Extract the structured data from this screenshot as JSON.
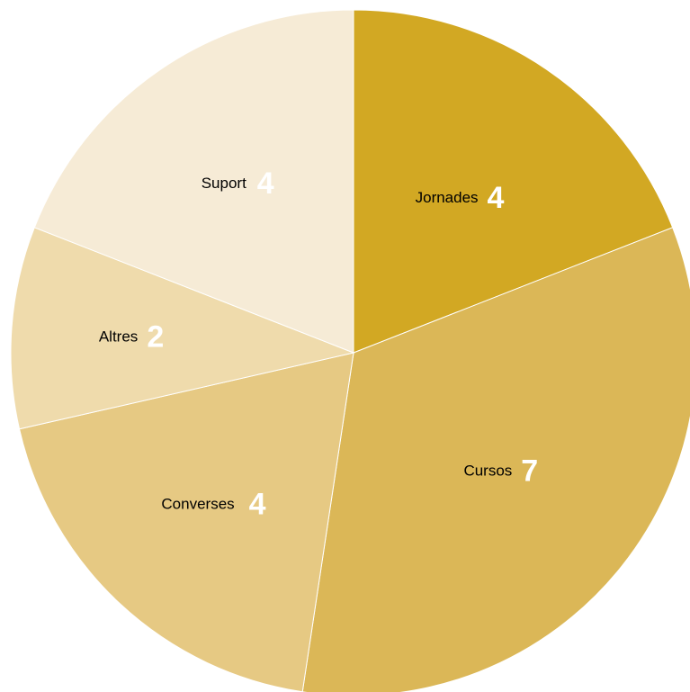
{
  "chart_data": {
    "type": "pie",
    "title": "",
    "slices": [
      {
        "label": "Jornades",
        "value": 4,
        "color": "#d2a823"
      },
      {
        "label": "Cursos",
        "value": 7,
        "color": "#dbb757"
      },
      {
        "label": "Converses",
        "value": 4,
        "color": "#e6c983"
      },
      {
        "label": "Altres",
        "value": 2,
        "color": "#efdbac"
      },
      {
        "label": "Suport",
        "value": 4,
        "color": "#f6ebd6"
      }
    ],
    "start": "12 o'clock",
    "direction": "clockwise",
    "legend": "none (labels on slices)"
  }
}
